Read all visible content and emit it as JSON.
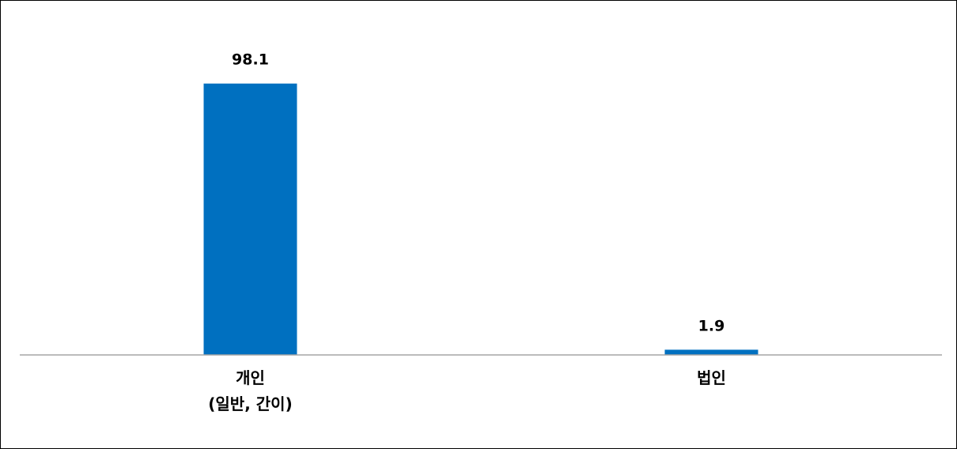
{
  "chart_data": {
    "type": "bar",
    "categories": [
      [
        "개인",
        "(일반, 간이)"
      ],
      [
        "법인"
      ]
    ],
    "values": [
      98.1,
      1.9
    ],
    "data_labels": [
      "98.1",
      "1.9"
    ],
    "title": "",
    "xlabel": "",
    "ylabel": "",
    "ylim": [
      0,
      100
    ],
    "grid": false,
    "legend": "none",
    "colors": {
      "bar": "#0070C0",
      "axis": "#A6A6A6",
      "text": "#000000",
      "border": "#000000"
    }
  }
}
